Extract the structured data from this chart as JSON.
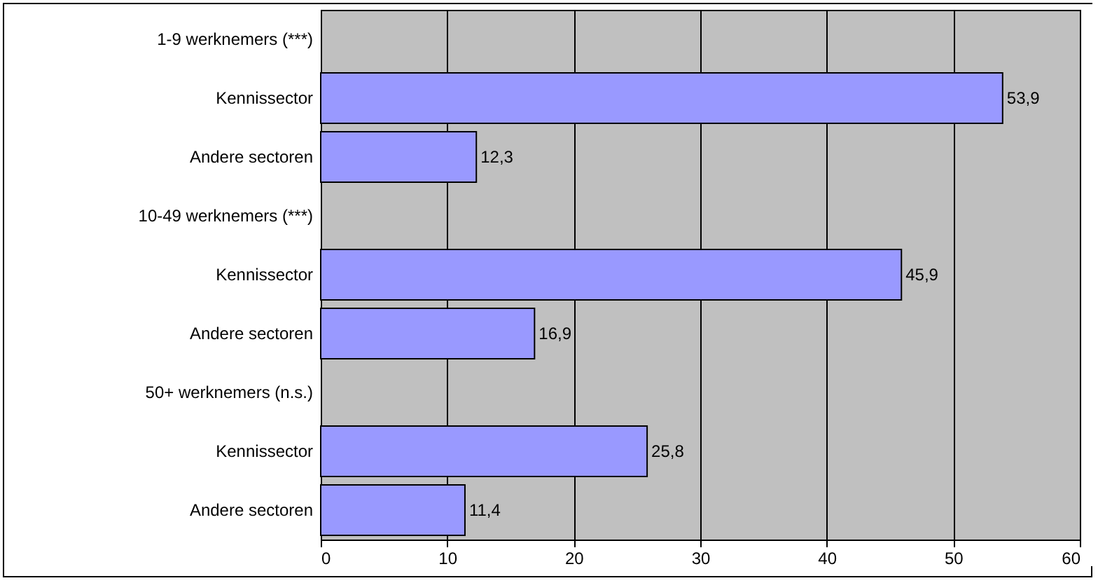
{
  "chart_data": {
    "type": "bar",
    "orientation": "horizontal",
    "categories": [
      "1-9 werknemers (***)",
      "Kennissector",
      "Andere sectoren",
      "10-49 werknemers (***)",
      "Kennissector",
      "Andere sectoren",
      "50+ werknemers (n.s.)",
      "Kennissector",
      "Andere sectoren"
    ],
    "values": [
      null,
      53.9,
      12.3,
      null,
      45.9,
      16.9,
      null,
      25.8,
      11.4
    ],
    "value_labels": [
      null,
      "53,9",
      "12,3",
      null,
      "45,9",
      "16,9",
      null,
      "25,8",
      "11,4"
    ],
    "color": "#9999ff",
    "xlim": [
      0,
      60
    ],
    "xticks": [
      0,
      10,
      20,
      30,
      40,
      50,
      60
    ],
    "grid": "x"
  }
}
